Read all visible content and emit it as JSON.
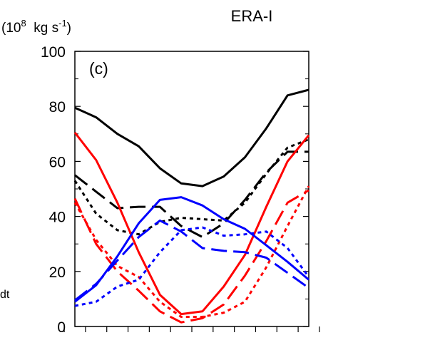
{
  "chart_data": {
    "type": "line",
    "title": "ERA-I",
    "panel_label": "(c)",
    "ylabel_parts": {
      "lead": "(10",
      "exp": "8",
      "mid": "  kg s",
      "exp2": "-1",
      "tail": ")"
    },
    "left_label_fragment": "dt",
    "ylim": [
      0,
      100
    ],
    "yticks": [
      "0",
      "20",
      "40",
      "60",
      "80",
      "100"
    ],
    "x": [
      1,
      2,
      3,
      4,
      5,
      6,
      7,
      8,
      9,
      10,
      11,
      12
    ],
    "grid": false,
    "series": [
      {
        "color": "#000000",
        "dash": "solid",
        "values": [
          79.5,
          76,
          70,
          65.5,
          57.5,
          52,
          51,
          54.5,
          61.5,
          72,
          84,
          86
        ]
      },
      {
        "color": "#000000",
        "dash": "long",
        "values": [
          55,
          49,
          43,
          43.5,
          43.5,
          36.5,
          32.5,
          37.5,
          46,
          56,
          63.5,
          63.5
        ]
      },
      {
        "color": "#000000",
        "dash": "short",
        "values": [
          53,
          41,
          35,
          33.5,
          38,
          39.5,
          39,
          38.5,
          45,
          55.5,
          65,
          68
        ]
      },
      {
        "color": "#ff0000",
        "dash": "solid",
        "values": [
          70.5,
          60.5,
          45,
          27,
          11.5,
          4.5,
          5.5,
          14.5,
          26,
          43.5,
          60,
          69.5
        ]
      },
      {
        "color": "#ff0000",
        "dash": "long",
        "values": [
          46.5,
          30,
          20,
          13,
          5.5,
          1.5,
          3,
          8,
          18.5,
          31,
          45,
          49.5
        ]
      },
      {
        "color": "#ff0000",
        "dash": "short",
        "values": [
          45,
          31.5,
          22,
          18,
          9,
          3.5,
          3.5,
          5,
          9,
          21.5,
          36.5,
          51
        ]
      },
      {
        "color": "#0000ff",
        "dash": "solid",
        "values": [
          9,
          15,
          25.5,
          37.5,
          46,
          47,
          44,
          39,
          35.5,
          29.5,
          23.5,
          17
        ]
      },
      {
        "color": "#0000ff",
        "dash": "long",
        "values": [
          9.5,
          15.5,
          24,
          32.5,
          38.5,
          34.5,
          28.5,
          27.5,
          27,
          25,
          19.5,
          14
        ]
      },
      {
        "color": "#0000ff",
        "dash": "short",
        "values": [
          7.5,
          9,
          14.5,
          17,
          27,
          35,
          36,
          33,
          33.5,
          34.5,
          28.5,
          18
        ]
      }
    ]
  }
}
